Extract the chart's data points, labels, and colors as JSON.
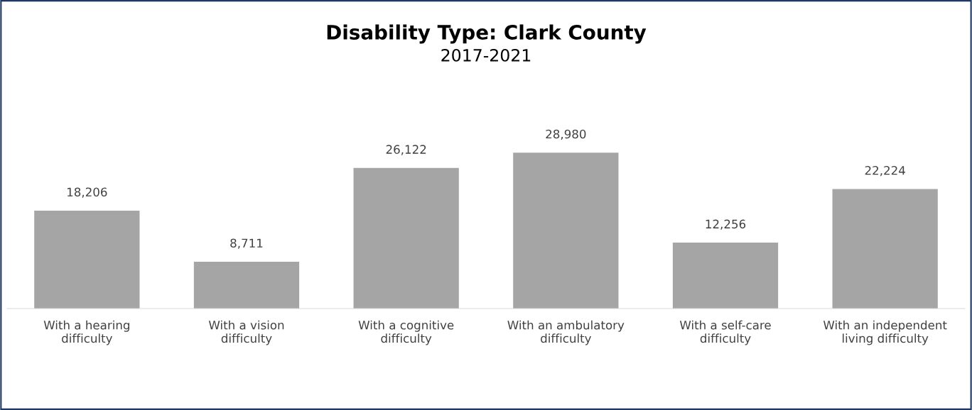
{
  "chart_data": {
    "type": "bar",
    "title": "Disability Type: Clark County",
    "subtitle": "2017-2021",
    "categories": [
      "With a hearing\ndifficulty",
      "With a vision\ndifficulty",
      "With a cognitive\ndifficulty",
      "With an ambulatory\ndifficulty",
      "With a self-care\ndifficulty",
      "With an independent\nliving difficulty"
    ],
    "values": [
      18206,
      8711,
      26122,
      28980,
      12256,
      22224
    ],
    "value_labels": [
      "18,206",
      "8,711",
      "26,122",
      "28,980",
      "12,256",
      "22,224"
    ],
    "color": "#a5a5a5",
    "tick_labels": "x",
    "grid": false,
    "legend": false
  }
}
